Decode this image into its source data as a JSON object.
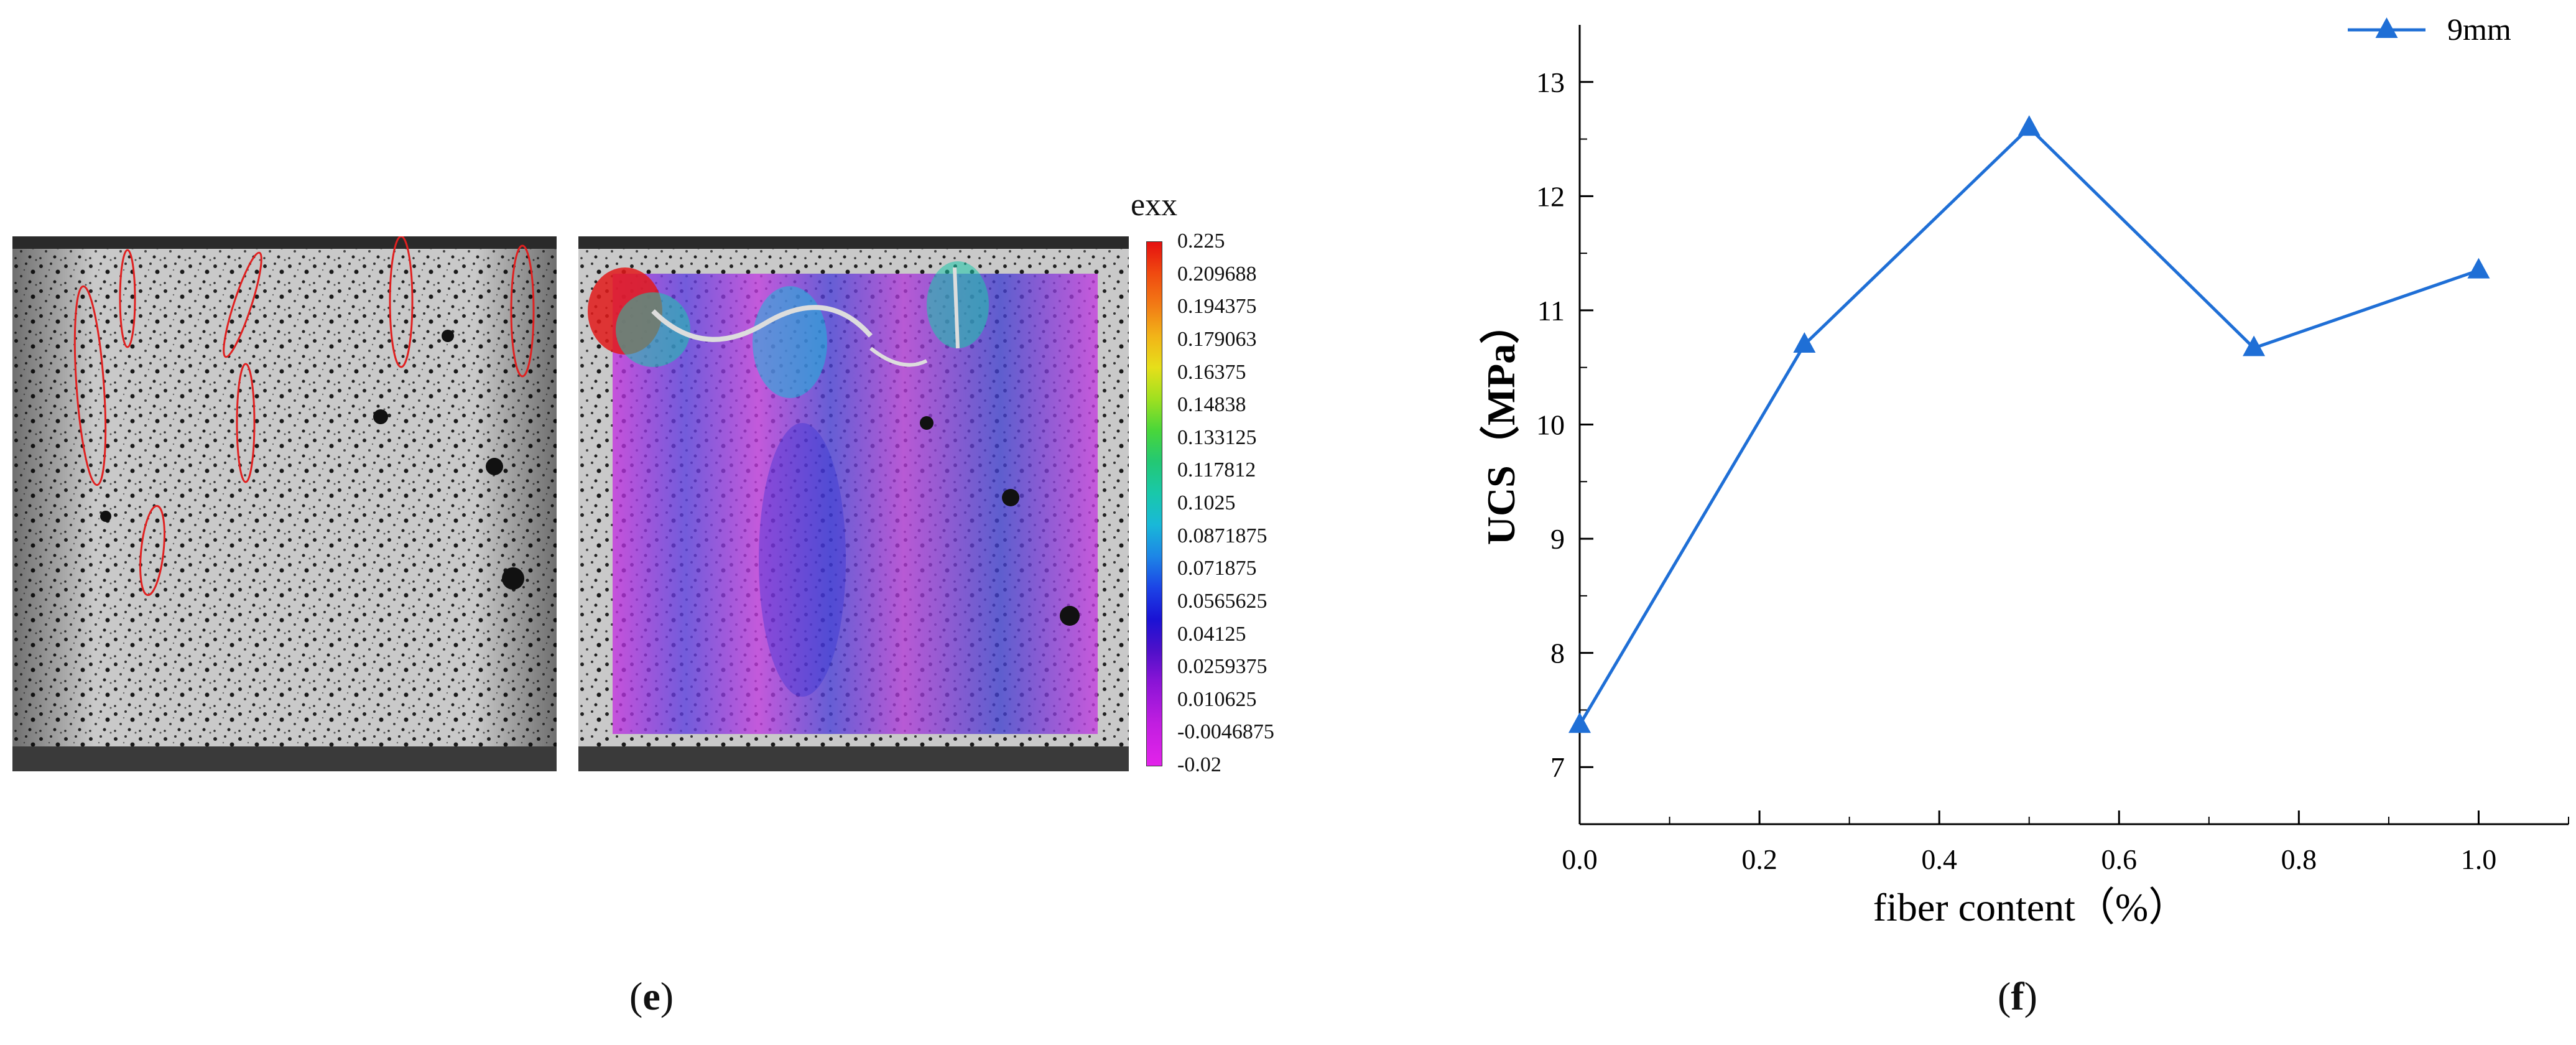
{
  "panel_e": {
    "caption_letter": "e",
    "colorbar": {
      "title": "exx",
      "labels": [
        "0.225",
        "0.209688",
        "0.194375",
        "0.179063",
        "0.16375",
        "0.14838",
        "0.133125",
        "0.117812",
        "0.1025",
        "0.0871875",
        "0.071875",
        "0.0565625",
        "0.04125",
        "0.0259375",
        "0.010625",
        "-0.0046875",
        "-0.02"
      ]
    }
  },
  "panel_f": {
    "caption_letter": "f"
  },
  "chart_data": {
    "type": "line",
    "title": "",
    "xlabel": "fiber content（%）",
    "ylabel": "UCS（MPa）",
    "x": [
      0.0,
      0.25,
      0.5,
      0.75,
      1.0
    ],
    "series": [
      {
        "name": "9mm",
        "values": [
          7.37,
          10.7,
          12.6,
          10.67,
          11.35
        ],
        "color": "#1f6fd6",
        "marker": "triangle"
      }
    ],
    "xlim": [
      0.0,
      1.1
    ],
    "ylim": [
      6.5,
      13.5
    ],
    "xticks": [
      "0.0",
      "0.2",
      "0.4",
      "0.6",
      "0.8",
      "1.0"
    ],
    "yticks": [
      "7",
      "8",
      "9",
      "10",
      "11",
      "12",
      "13"
    ],
    "legend": "top-right",
    "grid": false
  }
}
